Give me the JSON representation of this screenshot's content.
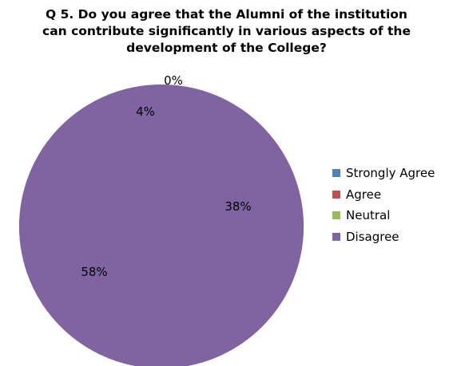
{
  "chart_data": {
    "type": "pie",
    "title_lines": [
      "Q 5.  Do you agree that the Alumni of the institution",
      "can contribute significantly in various aspects of the",
      "development of the College?"
    ],
    "categories": [
      "Strongly Agree",
      "Agree",
      "Neutral",
      "Disagree"
    ],
    "values": [
      38,
      58,
      4,
      0
    ],
    "data_labels": [
      "38%",
      "58%",
      "4%",
      "0%"
    ],
    "colors": [
      "#4F81BD",
      "#C0504D",
      "#9BBB59",
      "#8064A2"
    ],
    "visible_fill": "#8064A2",
    "legend": {
      "position": "right"
    }
  }
}
